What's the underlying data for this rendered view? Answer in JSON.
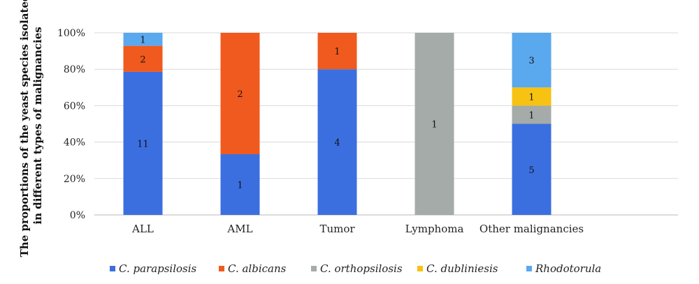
{
  "chart_data": {
    "type": "bar",
    "stacked": true,
    "normalized": true,
    "ylabel_lines": [
      "The proportions of the yeast species isolated",
      "in different types of malignancies"
    ],
    "xlabel": "",
    "ylim": [
      0,
      100
    ],
    "yticks": [
      "0%",
      "20%",
      "40%",
      "60%",
      "80%",
      "100%"
    ],
    "grid": true,
    "legend_position": "bottom",
    "categories": [
      "ALL",
      "AML",
      "Tumor",
      "Lymphoma",
      "Other malignancies"
    ],
    "series": [
      {
        "name": "C. parapsilosis",
        "color": "#3b6fe0",
        "values": [
          11,
          1,
          4,
          0,
          5
        ]
      },
      {
        "name": "C. albicans",
        "color": "#f05a1e",
        "values": [
          2,
          2,
          1,
          0,
          0
        ]
      },
      {
        "name": "C. orthopsilosis",
        "color": "#a4aba8",
        "values": [
          0,
          0,
          0,
          1,
          1
        ]
      },
      {
        "name": "C. dubliniesis",
        "color": "#f7c212",
        "values": [
          0,
          0,
          0,
          0,
          1
        ]
      },
      {
        "name": "Rhodotorula",
        "color": "#5aa8ee",
        "values": [
          1,
          0,
          0,
          0,
          3
        ]
      }
    ]
  }
}
